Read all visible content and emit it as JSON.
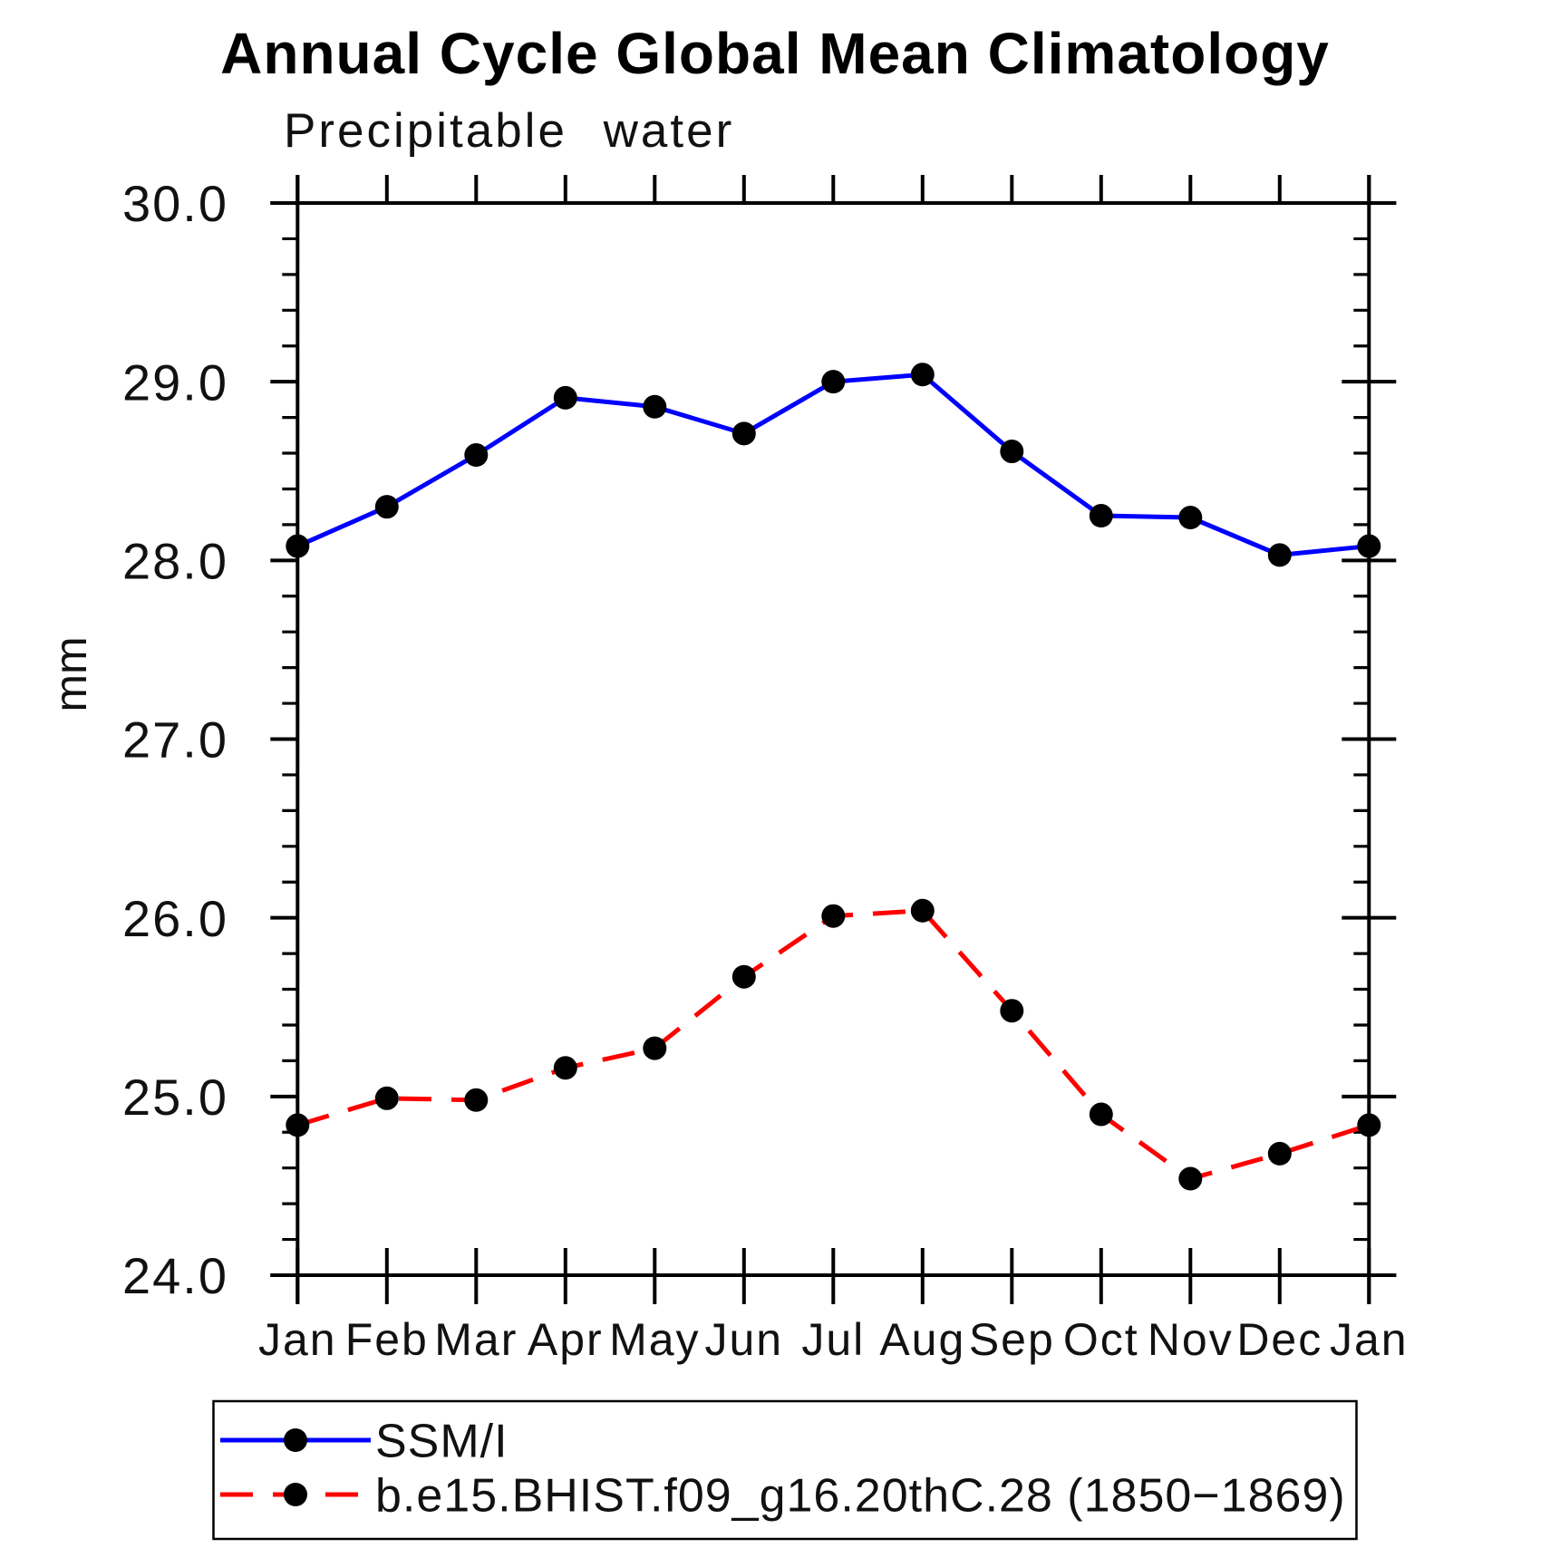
{
  "header": {
    "title": "Annual Cycle Global Mean Climatology",
    "subtitle": "Precipitable water"
  },
  "chart_data": {
    "type": "line",
    "title": "Annual Cycle Global Mean Climatology",
    "subtitle": "Precipitable water",
    "xlabel": "",
    "ylabel": "mm",
    "x_categories": [
      "Jan",
      "Feb",
      "Mar",
      "Apr",
      "May",
      "Jun",
      "Jul",
      "Aug",
      "Sep",
      "Oct",
      "Nov",
      "Dec",
      "Jan"
    ],
    "y_tick_labels": [
      "30.0",
      "29.0",
      "28.0",
      "27.0",
      "26.0",
      "25.0",
      "24.0"
    ],
    "ylim": [
      24.0,
      30.0
    ],
    "y_major_step": 1.0,
    "y_minor_step": 0.2,
    "grid": false,
    "legend_position": "bottom-box",
    "axis_color": "#000000",
    "marker_color": "#000000",
    "series": [
      {
        "name": "SSM/I",
        "color": "#0000ff",
        "style": "solid",
        "marker": "circle",
        "values": [
          28.08,
          28.3,
          28.59,
          28.91,
          28.86,
          28.71,
          29.0,
          29.04,
          28.61,
          28.25,
          28.24,
          28.03,
          28.08
        ]
      },
      {
        "name": "b.e15.BHIST.f09_g16.20thC.28 (1850−1869)",
        "color": "#ff0000",
        "style": "dashed",
        "marker": "circle",
        "values": [
          24.84,
          24.99,
          24.98,
          25.16,
          25.27,
          25.67,
          26.01,
          26.04,
          25.48,
          24.9,
          24.54,
          24.68,
          24.84
        ]
      }
    ]
  }
}
